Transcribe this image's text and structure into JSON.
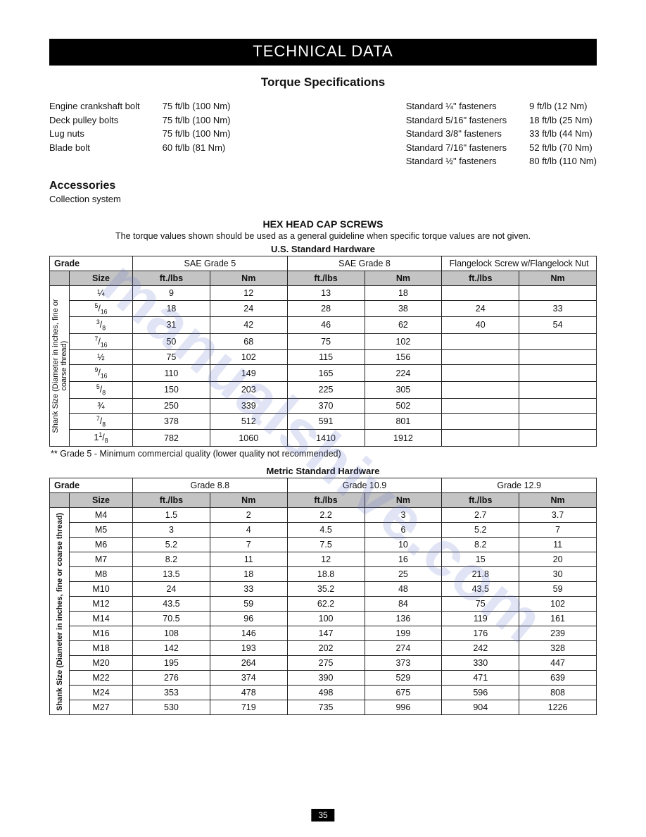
{
  "header": {
    "title": "TECHNICAL DATA",
    "subtitle": "Torque Specifications"
  },
  "torque_left": {
    "labels": [
      "Engine crankshaft bolt",
      "Deck pulley bolts",
      "Lug nuts",
      "Blade bolt"
    ],
    "values": [
      "75 ft/lb (100 Nm)",
      "75 ft/lb (100 Nm)",
      "75 ft/lb (100 Nm)",
      "60 ft/lb (81 Nm)"
    ]
  },
  "torque_right": {
    "labels": [
      "Standard ¼\" fasteners",
      "Standard 5/16\" fasteners",
      "Standard 3/8\" fasteners",
      "Standard 7/16\" fasteners",
      "Standard ½\" fasteners"
    ],
    "values": [
      "9 ft/lb (12 Nm)",
      "18 ft/lb (25 Nm)",
      "33 ft/lb (44 Nm)",
      "52 ft/lb (70 Nm)",
      "80 ft/lb (110 Nm)"
    ]
  },
  "accessories": {
    "title": "Accessories",
    "text": "Collection system"
  },
  "hex": {
    "title": "HEX HEAD CAP SCREWS",
    "sub": "The torque values shown should be used as a general guideline when specific torque values are not given."
  },
  "us": {
    "title": "U.S. Standard Hardware",
    "grade_label": "Grade",
    "grades": [
      "SAE Grade 5",
      "SAE Grade 8",
      "Flangelock Screw w/Flangelock Nut"
    ],
    "size_label": "Size",
    "unit_ft": "ft./lbs",
    "unit_nm": "Nm",
    "rot_label": "Shank Size (Diameter in inches, fine or coarse thread)",
    "rows": [
      {
        "size": "¼",
        "v": [
          "9",
          "12",
          "13",
          "18",
          "",
          ""
        ]
      },
      {
        "size": "5/16",
        "v": [
          "18",
          "24",
          "28",
          "38",
          "24",
          "33"
        ]
      },
      {
        "size": "3/8",
        "v": [
          "31",
          "42",
          "46",
          "62",
          "40",
          "54"
        ]
      },
      {
        "size": "7/16",
        "v": [
          "50",
          "68",
          "75",
          "102",
          "",
          ""
        ]
      },
      {
        "size": "½",
        "v": [
          "75",
          "102",
          "115",
          "156",
          "",
          ""
        ]
      },
      {
        "size": "9/16",
        "v": [
          "110",
          "149",
          "165",
          "224",
          "",
          ""
        ]
      },
      {
        "size": "5/8",
        "v": [
          "150",
          "203",
          "225",
          "305",
          "",
          ""
        ]
      },
      {
        "size": "¾",
        "v": [
          "250",
          "339",
          "370",
          "502",
          "",
          ""
        ]
      },
      {
        "size": "7/8",
        "v": [
          "378",
          "512",
          "591",
          "801",
          "",
          ""
        ]
      },
      {
        "size": "1 1/8",
        "v": [
          "782",
          "1060",
          "1410",
          "1912",
          "",
          ""
        ]
      }
    ],
    "footnote": "** Grade 5 - Minimum commercial quality (lower quality not recommended)"
  },
  "metric": {
    "title": "Metric Standard Hardware",
    "grade_label": "Grade",
    "grades": [
      "Grade 8.8",
      "Grade 10.9",
      "Grade 12.9"
    ],
    "size_label": "Size",
    "unit_ft": "ft./lbs",
    "unit_nm": "Nm",
    "rot_label": "Shank Size (Diameter in inches, fine or coarse thread)",
    "rows": [
      {
        "size": "M4",
        "v": [
          "1.5",
          "2",
          "2.2",
          "3",
          "2.7",
          "3.7"
        ]
      },
      {
        "size": "M5",
        "v": [
          "3",
          "4",
          "4.5",
          "6",
          "5.2",
          "7"
        ]
      },
      {
        "size": "M6",
        "v": [
          "5.2",
          "7",
          "7.5",
          "10",
          "8.2",
          "11"
        ]
      },
      {
        "size": "M7",
        "v": [
          "8.2",
          "11",
          "12",
          "16",
          "15",
          "20"
        ]
      },
      {
        "size": "M8",
        "v": [
          "13.5",
          "18",
          "18.8",
          "25",
          "21.8",
          "30"
        ]
      },
      {
        "size": "M10",
        "v": [
          "24",
          "33",
          "35.2",
          "48",
          "43.5",
          "59"
        ]
      },
      {
        "size": "M12",
        "v": [
          "43.5",
          "59",
          "62.2",
          "84",
          "75",
          "102"
        ]
      },
      {
        "size": "M14",
        "v": [
          "70.5",
          "96",
          "100",
          "136",
          "119",
          "161"
        ]
      },
      {
        "size": "M16",
        "v": [
          "108",
          "146",
          "147",
          "199",
          "176",
          "239"
        ]
      },
      {
        "size": "M18",
        "v": [
          "142",
          "193",
          "202",
          "274",
          "242",
          "328"
        ]
      },
      {
        "size": "M20",
        "v": [
          "195",
          "264",
          "275",
          "373",
          "330",
          "447"
        ]
      },
      {
        "size": "M22",
        "v": [
          "276",
          "374",
          "390",
          "529",
          "471",
          "639"
        ]
      },
      {
        "size": "M24",
        "v": [
          "353",
          "478",
          "498",
          "675",
          "596",
          "808"
        ]
      },
      {
        "size": "M27",
        "v": [
          "530",
          "719",
          "735",
          "996",
          "904",
          "1226"
        ]
      }
    ]
  },
  "page_number": "35",
  "watermark": "manualshive.com",
  "colors": {
    "page_bg": "#ffffff",
    "text": "#111111",
    "title_bar_bg": "#000000",
    "title_bar_fg": "#ffffff",
    "table_border": "#222222",
    "shaded_header_bg": "#c4c4c4",
    "watermark_color": "rgba(100,120,200,0.20)"
  }
}
